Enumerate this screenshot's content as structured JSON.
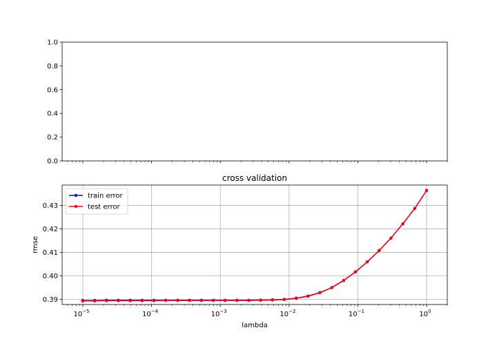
{
  "chart_data": [
    {
      "type": "line",
      "title": "",
      "xlabel": "",
      "ylabel": "",
      "xscale": "log",
      "xlim": [
        5e-06,
        2
      ],
      "ylim": [
        0.0,
        1.0
      ],
      "y_ticks": [
        0.0,
        0.2,
        0.4,
        0.6,
        0.8,
        1.0
      ],
      "y_tick_labels": [
        "0.0",
        "0.2",
        "0.4",
        "0.6",
        "0.8",
        "1.0"
      ],
      "x_tick_labels_visible": false,
      "grid": false,
      "series": []
    },
    {
      "type": "line",
      "title": "cross validation",
      "xlabel": "lambda",
      "ylabel": "rmse",
      "xscale": "log",
      "xlim": [
        5e-06,
        2
      ],
      "ylim": [
        0.3878,
        0.4387
      ],
      "x_ticks": [
        1e-05,
        0.0001,
        0.001,
        0.01,
        0.1,
        1
      ],
      "x_tick_labels": [
        {
          "base": "10",
          "exp": "−5"
        },
        {
          "base": "10",
          "exp": "−4"
        },
        {
          "base": "10",
          "exp": "−3"
        },
        {
          "base": "10",
          "exp": "−2"
        },
        {
          "base": "10",
          "exp": "−1"
        },
        {
          "base": "10",
          "exp": "0"
        }
      ],
      "y_ticks": [
        0.39,
        0.4,
        0.41,
        0.42,
        0.43
      ],
      "y_tick_labels": [
        "0.39",
        "0.40",
        "0.41",
        "0.42",
        "0.43"
      ],
      "grid": true,
      "legend": "top-left",
      "x": [
        1e-05,
        1.4874e-05,
        2.2122e-05,
        3.2903e-05,
        4.8939e-05,
        7.279e-05,
        0.00010826,
        0.00016103,
        0.0002395,
        0.00035622,
        0.00052983,
        0.00078805,
        0.0011721,
        0.0017433,
        0.0025929,
        0.0038566,
        0.0057362,
        0.0085317,
        0.01269,
        0.018874,
        0.028072,
        0.041753,
        0.062102,
        0.092367,
        0.13738,
        0.20434,
        0.30392,
        0.45204,
        0.67234,
        1.0
      ],
      "series": [
        {
          "name": "train error",
          "color": "#0000ff",
          "marker": "dot",
          "values": [
            0.3895,
            0.3895,
            0.3896,
            0.3896,
            0.3896,
            0.3896,
            0.3896,
            0.3896,
            0.3896,
            0.3896,
            0.3896,
            0.3896,
            0.3896,
            0.3896,
            0.3896,
            0.3897,
            0.3898,
            0.39,
            0.3905,
            0.3914,
            0.3929,
            0.395,
            0.398,
            0.4017,
            0.406,
            0.4108,
            0.4161,
            0.4222,
            0.4287,
            0.4364
          ]
        },
        {
          "name": "test error",
          "color": "#ff0000",
          "marker": "dot",
          "values": [
            0.3893,
            0.3893,
            0.3894,
            0.3894,
            0.3894,
            0.3894,
            0.3894,
            0.3895,
            0.3895,
            0.3895,
            0.3895,
            0.3895,
            0.3895,
            0.3895,
            0.3895,
            0.3896,
            0.3897,
            0.3899,
            0.3904,
            0.3913,
            0.3928,
            0.395,
            0.398,
            0.4017,
            0.406,
            0.4108,
            0.4161,
            0.4222,
            0.4287,
            0.4364
          ]
        }
      ]
    }
  ]
}
